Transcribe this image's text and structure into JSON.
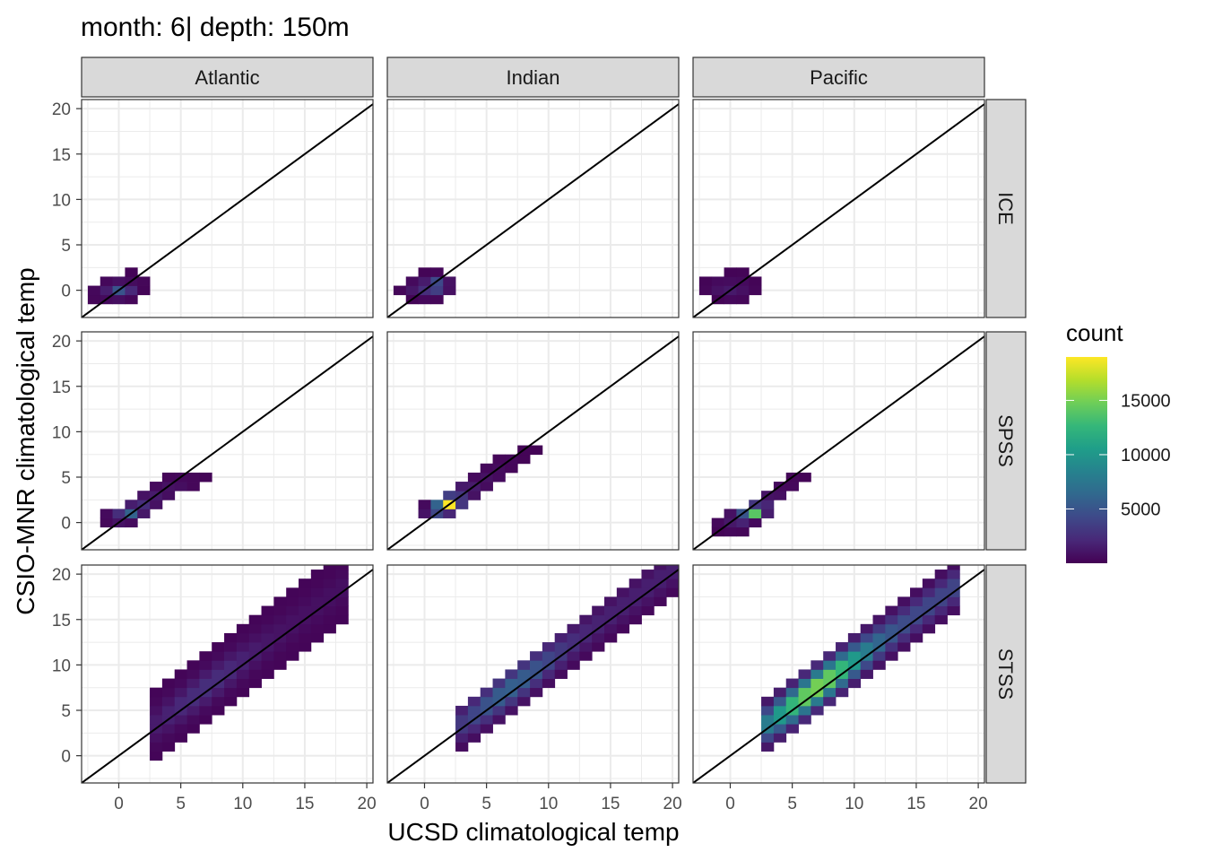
{
  "chart_data": {
    "type": "heatmap",
    "title": "month: 6| depth: 150m",
    "xlabel": "UCSD climatological temp",
    "ylabel": "CSIO-MNR climatological temp",
    "xlim": [
      -3,
      20.5
    ],
    "ylim": [
      -3,
      21
    ],
    "x_ticks": [
      0,
      5,
      10,
      15,
      20
    ],
    "y_ticks": [
      0,
      5,
      10,
      15,
      20
    ],
    "grid": true,
    "legend": {
      "title": "count",
      "placement": "right",
      "breaks": [
        5000,
        10000,
        15000
      ],
      "labels": [
        "5000",
        "10000",
        "15000"
      ],
      "min": 0,
      "max": 19000
    },
    "reference_line": {
      "type": "identity",
      "slope": 1,
      "intercept": 0
    },
    "bin_width": 1,
    "columns": [
      "Atlantic",
      "Indian",
      "Pacific"
    ],
    "rows": [
      "ICE",
      "SPSS",
      "STSS"
    ],
    "color_scale": [
      "#440154",
      "#482878",
      "#3e4989",
      "#31688e",
      "#26828e",
      "#1f9e89",
      "#35b779",
      "#6ece58",
      "#b5de2b",
      "#fde725"
    ],
    "panels": [
      {
        "col": "Atlantic",
        "row": "ICE",
        "cells": [
          [
            -2,
            -1,
            300
          ],
          [
            -1,
            -1,
            500
          ],
          [
            0,
            -1,
            700
          ],
          [
            1,
            -1,
            300
          ],
          [
            -2,
            0,
            400
          ],
          [
            -1,
            0,
            1500
          ],
          [
            0,
            0,
            5000
          ],
          [
            1,
            0,
            2200
          ],
          [
            2,
            0,
            200
          ],
          [
            -1,
            1,
            400
          ],
          [
            0,
            1,
            800
          ],
          [
            1,
            1,
            600
          ],
          [
            2,
            1,
            300
          ],
          [
            1,
            2,
            150
          ]
        ]
      },
      {
        "col": "Indian",
        "row": "ICE",
        "cells": [
          [
            -1,
            -1,
            200
          ],
          [
            0,
            -1,
            400
          ],
          [
            1,
            -1,
            300
          ],
          [
            -2,
            0,
            300
          ],
          [
            -1,
            0,
            1200
          ],
          [
            0,
            0,
            2500
          ],
          [
            1,
            0,
            3500
          ],
          [
            2,
            0,
            800
          ],
          [
            -1,
            1,
            500
          ],
          [
            0,
            1,
            1400
          ],
          [
            1,
            1,
            4200
          ],
          [
            2,
            1,
            900
          ],
          [
            0,
            2,
            200
          ],
          [
            1,
            2,
            300
          ]
        ]
      },
      {
        "col": "Pacific",
        "row": "ICE",
        "cells": [
          [
            -1,
            -1,
            200
          ],
          [
            0,
            -1,
            400
          ],
          [
            1,
            -1,
            300
          ],
          [
            -2,
            0,
            300
          ],
          [
            -1,
            0,
            900
          ],
          [
            0,
            0,
            1300
          ],
          [
            1,
            0,
            800
          ],
          [
            2,
            0,
            300
          ],
          [
            -2,
            1,
            200
          ],
          [
            -1,
            1,
            500
          ],
          [
            0,
            1,
            600
          ],
          [
            1,
            1,
            500
          ],
          [
            2,
            1,
            200
          ],
          [
            0,
            2,
            150
          ],
          [
            1,
            2,
            200
          ]
        ]
      },
      {
        "col": "Atlantic",
        "row": "SPSS",
        "cells": [
          [
            -1,
            0,
            400
          ],
          [
            0,
            0,
            1000
          ],
          [
            1,
            0,
            600
          ],
          [
            -1,
            1,
            500
          ],
          [
            0,
            1,
            2500
          ],
          [
            1,
            1,
            6000
          ],
          [
            2,
            1,
            1200
          ],
          [
            1,
            2,
            1500
          ],
          [
            2,
            2,
            2500
          ],
          [
            3,
            2,
            800
          ],
          [
            2,
            3,
            900
          ],
          [
            3,
            3,
            1400
          ],
          [
            4,
            3,
            700
          ],
          [
            3,
            4,
            500
          ],
          [
            4,
            4,
            900
          ],
          [
            5,
            4,
            700
          ],
          [
            6,
            4,
            300
          ],
          [
            4,
            5,
            300
          ],
          [
            5,
            5,
            400
          ],
          [
            6,
            5,
            300
          ],
          [
            7,
            5,
            200
          ]
        ]
      },
      {
        "col": "Indian",
        "row": "SPSS",
        "cells": [
          [
            0,
            1,
            1000
          ],
          [
            1,
            1,
            4000
          ],
          [
            2,
            1,
            2000
          ],
          [
            0,
            2,
            500
          ],
          [
            1,
            2,
            6000
          ],
          [
            2,
            2,
            19000
          ],
          [
            3,
            2,
            3000
          ],
          [
            2,
            3,
            3500
          ],
          [
            3,
            3,
            3000
          ],
          [
            4,
            3,
            900
          ],
          [
            3,
            4,
            1300
          ],
          [
            4,
            4,
            1400
          ],
          [
            5,
            4,
            600
          ],
          [
            4,
            5,
            500
          ],
          [
            5,
            5,
            900
          ],
          [
            6,
            5,
            500
          ],
          [
            5,
            6,
            400
          ],
          [
            6,
            6,
            600
          ],
          [
            7,
            6,
            300
          ],
          [
            6,
            7,
            300
          ],
          [
            7,
            7,
            400
          ],
          [
            8,
            7,
            200
          ],
          [
            8,
            8,
            200
          ],
          [
            9,
            8,
            100
          ]
        ]
      },
      {
        "col": "Pacific",
        "row": "SPSS",
        "cells": [
          [
            -1,
            -1,
            200
          ],
          [
            0,
            -1,
            400
          ],
          [
            1,
            -1,
            300
          ],
          [
            -1,
            0,
            400
          ],
          [
            0,
            0,
            1200
          ],
          [
            1,
            0,
            1800
          ],
          [
            2,
            0,
            500
          ],
          [
            0,
            1,
            800
          ],
          [
            1,
            1,
            5000
          ],
          [
            2,
            1,
            14000
          ],
          [
            3,
            1,
            1500
          ],
          [
            2,
            2,
            3000
          ],
          [
            3,
            2,
            2000
          ],
          [
            3,
            3,
            1000
          ],
          [
            4,
            3,
            800
          ],
          [
            4,
            4,
            500
          ],
          [
            5,
            4,
            400
          ],
          [
            5,
            5,
            300
          ],
          [
            6,
            5,
            200
          ]
        ]
      }
    ],
    "stss_bands": [
      {
        "col": "Atlantic",
        "x_range": [
          3,
          18
        ],
        "y_offset_min": -3,
        "y_offset_max": 4,
        "peak_value": 2500
      },
      {
        "col": "Indian",
        "x_range": [
          3,
          20
        ],
        "y_offset_min": -2,
        "y_offset_max": 2,
        "peak_value": 6000
      },
      {
        "col": "Pacific",
        "x_range": [
          3,
          18
        ],
        "y_offset_min": -2,
        "y_offset_max": 3,
        "peak_value": 16000
      }
    ]
  }
}
